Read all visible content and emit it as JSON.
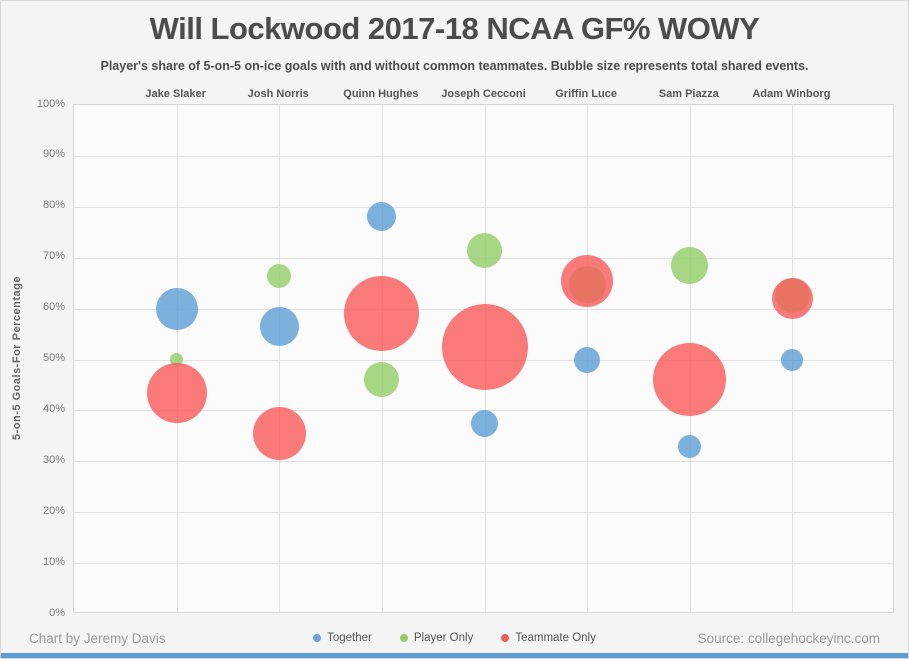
{
  "page": {
    "credit": "Chart by Jeremy Davis",
    "source": "Source: collegehockeyinc.com",
    "accent_bar_color": "#5D9DD5"
  },
  "chart_data": {
    "type": "scatter",
    "title": "Will Lockwood 2017-18 NCAA GF% WOWY",
    "subtitle": "Player's share of 5-on-5 on-ice goals with and without common teammates. Bubble size represents total shared events.",
    "ylabel": "5-on-5 Goals-For Percentage",
    "ylim": [
      0,
      100
    ],
    "yticks": [
      "0%",
      "10%",
      "20%",
      "30%",
      "40%",
      "50%",
      "60%",
      "70%",
      "80%",
      "90%",
      "100%"
    ],
    "grid": true,
    "legend_position": "bottom",
    "bubble_size_meaning": "total shared events",
    "categories": [
      "Jake Slaker",
      "Josh Norris",
      "Quinn Hughes",
      "Joseph Cecconi",
      "Griffin Luce",
      "Sam Piazza",
      "Adam Winborg"
    ],
    "series": [
      {
        "name": "Together",
        "color": "rgba(95,159,214,0.82)",
        "legend_color": "#6CA3D4",
        "gf_pct": [
          60,
          56.5,
          78,
          37.5,
          50,
          33,
          50
        ],
        "bubble_radius_px": [
          21,
          19.5,
          14.5,
          13.5,
          13,
          11.5,
          11
        ]
      },
      {
        "name": "Player Only",
        "color": "rgba(148,205,106,0.82)",
        "legend_color": "#9CC963",
        "gf_pct": [
          50,
          66.5,
          46,
          71.5,
          64.7,
          68.5,
          62.5
        ],
        "bubble_radius_px": [
          6.5,
          12,
          17.5,
          17.5,
          18.5,
          18.5,
          17.5
        ]
      },
      {
        "name": "Teammate Only",
        "color": "rgba(250,90,90,0.80)",
        "legend_color": "#ED5E5E",
        "gf_pct": [
          43.5,
          35.5,
          59,
          52.5,
          65.5,
          46,
          62
        ],
        "bubble_radius_px": [
          30,
          26.5,
          37.5,
          43,
          26,
          36.5,
          20.5
        ]
      }
    ]
  }
}
